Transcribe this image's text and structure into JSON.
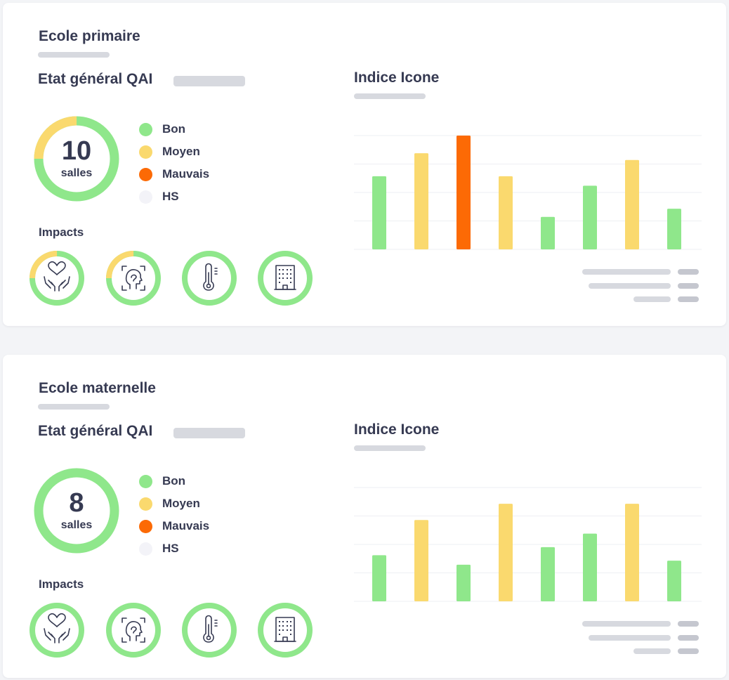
{
  "cards": [
    {
      "title": "Ecole primaire",
      "qai_title": "Etat général QAI",
      "total_rooms": "10",
      "rooms_unit": "salles",
      "donut_distribution": {
        "bon": 75,
        "moyen": 25,
        "mauvais": 0,
        "hs": 0
      },
      "legend": [
        {
          "label": "Bon",
          "color": "#8fe78b"
        },
        {
          "label": "Moyen",
          "color": "#fad96e"
        },
        {
          "label": "Mauvais",
          "color": "#fc6a05"
        },
        {
          "label": "HS",
          "color": "#f3f3f8"
        }
      ],
      "impacts_label": "Impacts",
      "impacts": [
        {
          "icon": "heart-hands-icon",
          "moyen_fraction": 0.25
        },
        {
          "icon": "head-scan-icon",
          "moyen_fraction": 0.25
        },
        {
          "icon": "thermometer-icon",
          "moyen_fraction": 0
        },
        {
          "icon": "building-icon",
          "moyen_fraction": 0
        }
      ],
      "indice_title": "Indice Icone"
    },
    {
      "title": "Ecole maternelle",
      "qai_title": "Etat général QAI",
      "total_rooms": "8",
      "rooms_unit": "salles",
      "donut_distribution": {
        "bon": 100,
        "moyen": 0,
        "mauvais": 0,
        "hs": 0
      },
      "legend": [
        {
          "label": "Bon",
          "color": "#8fe78b"
        },
        {
          "label": "Moyen",
          "color": "#fad96e"
        },
        {
          "label": "Mauvais",
          "color": "#fc6a05"
        },
        {
          "label": "HS",
          "color": "#f3f3f8"
        }
      ],
      "impacts_label": "Impacts",
      "impacts": [
        {
          "icon": "heart-hands-icon",
          "moyen_fraction": 0
        },
        {
          "icon": "head-scan-icon",
          "moyen_fraction": 0
        },
        {
          "icon": "thermometer-icon",
          "moyen_fraction": 0
        },
        {
          "icon": "building-icon",
          "moyen_fraction": 0
        }
      ],
      "indice_title": "Indice Icone"
    }
  ],
  "chart_data": [
    {
      "type": "bar",
      "title": "Indice Icone",
      "ylim": [
        0,
        4.2
      ],
      "grid": true,
      "values": [
        2.7,
        3.55,
        4.2,
        2.7,
        1.2,
        2.35,
        3.3,
        1.5
      ],
      "bar_levels": [
        "bon",
        "moyen",
        "mauvais",
        "moyen",
        "bon",
        "bon",
        "moyen",
        "bon"
      ]
    },
    {
      "type": "bar",
      "title": "Indice Icone",
      "ylim": [
        0,
        4.2
      ],
      "grid": true,
      "values": [
        1.7,
        3.0,
        1.35,
        3.6,
        2.0,
        2.5,
        3.6,
        1.5
      ],
      "bar_levels": [
        "bon",
        "moyen",
        "bon",
        "moyen",
        "bon",
        "bon",
        "moyen",
        "bon"
      ]
    }
  ],
  "colors": {
    "bon": "#8fe78b",
    "moyen": "#fad96e",
    "mauvais": "#fc6a05",
    "hs": "#f3f3f8",
    "grid": "#eeeff3",
    "placeholder": "#d7d9df",
    "text": "#363a52"
  }
}
